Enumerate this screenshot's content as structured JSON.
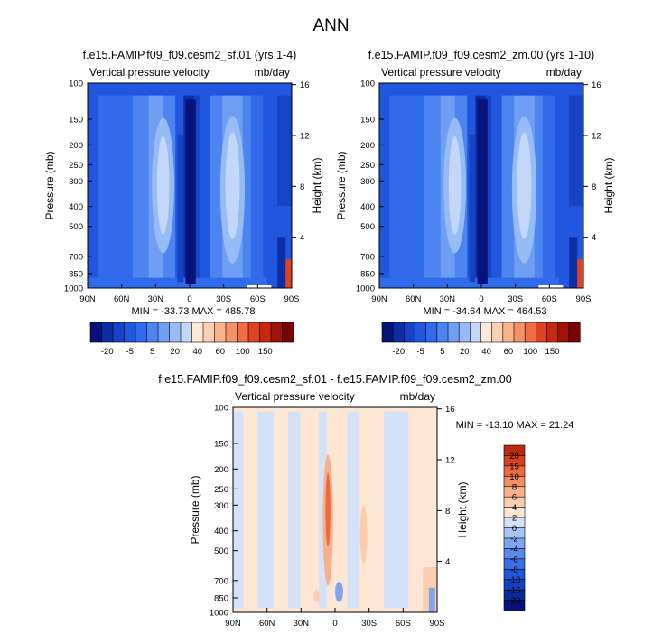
{
  "page_title": "ANN",
  "colors": {
    "scale_abs": [
      "#07127a",
      "#0c2ea3",
      "#1543c6",
      "#2157df",
      "#2f6bea",
      "#4c85ef",
      "#6e9ff2",
      "#97bcf5",
      "#c3d8f8",
      "#fde9d5",
      "#fbd0b3",
      "#f8b38c",
      "#f49266",
      "#ef6d43",
      "#dd4322",
      "#c52a11",
      "#9f1209",
      "#7a0303"
    ],
    "scale_diff": [
      "#06117a",
      "#0b2a9c",
      "#1441bd",
      "#2155da",
      "#3a6de6",
      "#5a88ec",
      "#7fa4f0",
      "#a9c3f4",
      "#d4e2f9",
      "#fde6d3",
      "#fbcdb0",
      "#f8b08a",
      "#f38e63",
      "#eb6a40",
      "#d7421f",
      "#be2810",
      "#991008",
      "#6f0202"
    ]
  },
  "chart_data": [
    {
      "type": "heatmap",
      "title": "f.e15.FAMIP.f09_f09.cesm2_sf.01 (yrs 1-4)",
      "left_label": "Vertical pressure velocity",
      "right_label": "mb/day",
      "ylabel": "Pressure (mb)",
      "y2label": "Height (km)",
      "y_ticks": [
        "100",
        "150",
        "200",
        "250",
        "300",
        "400",
        "500",
        "700",
        "850",
        "1000"
      ],
      "y2_ticks": [
        "16",
        "12",
        "8",
        "4"
      ],
      "x_ticks": [
        "90N",
        "60N",
        "30N",
        "0",
        "30S",
        "60S",
        "90S"
      ],
      "stats": "MIN = -33.73  MAX = 485.78",
      "colorbar_labels": [
        "-20",
        "-5",
        "5",
        "20",
        "40",
        "60",
        "100",
        "150"
      ],
      "x_range": [
        90,
        -90
      ],
      "y_range": [
        100,
        1000
      ],
      "y_scale": "log"
    },
    {
      "type": "heatmap",
      "title": "f.e15.FAMIP.f09_f09.cesm2_zm.00 (yrs 1-10)",
      "left_label": "Vertical pressure velocity",
      "right_label": "mb/day",
      "ylabel": "Pressure (mb)",
      "y2label": "Height (km)",
      "y_ticks": [
        "100",
        "150",
        "200",
        "250",
        "300",
        "400",
        "500",
        "700",
        "850",
        "1000"
      ],
      "y2_ticks": [
        "16",
        "12",
        "8",
        "4"
      ],
      "x_ticks": [
        "90N",
        "60N",
        "30N",
        "0",
        "30S",
        "60S",
        "90S"
      ],
      "stats": "MIN = -34.64  MAX = 464.53",
      "colorbar_labels": [
        "-20",
        "-5",
        "5",
        "20",
        "40",
        "60",
        "100",
        "150"
      ],
      "x_range": [
        90,
        -90
      ],
      "y_range": [
        100,
        1000
      ],
      "y_scale": "log"
    },
    {
      "type": "heatmap",
      "title": "f.e15.FAMIP.f09_f09.cesm2_sf.01 - f.e15.FAMIP.f09_f09.cesm2_zm.00",
      "left_label": "Vertical pressure velocity",
      "right_label": "mb/day",
      "ylabel": "Pressure (mb)",
      "y2label": "Height (km)",
      "y_ticks": [
        "100",
        "150",
        "200",
        "250",
        "300",
        "400",
        "500",
        "700",
        "850",
        "1000"
      ],
      "y2_ticks": [
        "16",
        "12",
        "8",
        "4"
      ],
      "x_ticks": [
        "90N",
        "60N",
        "30N",
        "0",
        "30S",
        "60S",
        "90S"
      ],
      "stats": "MIN = -13.10  MAX = 21.24",
      "colorbar_labels": [
        "20",
        "15",
        "10",
        "8",
        "6",
        "4",
        "2",
        "0",
        "-2",
        "-4",
        "-6",
        "-8",
        "-10",
        "-15",
        "-20"
      ],
      "x_range": [
        90,
        -90
      ],
      "y_range": [
        100,
        1000
      ],
      "y_scale": "log"
    }
  ]
}
